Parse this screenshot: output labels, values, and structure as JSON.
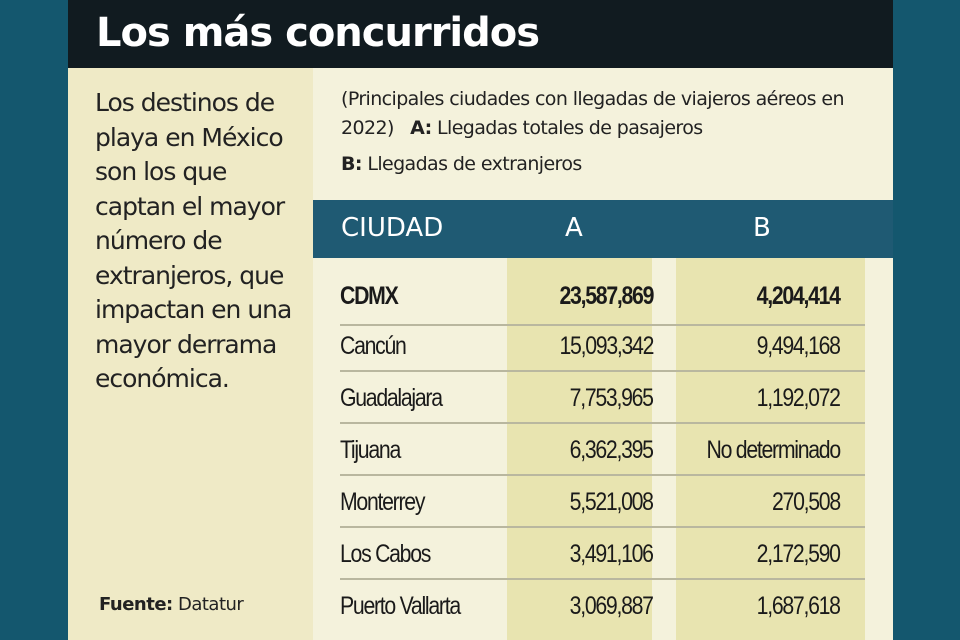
{
  "title": "Los más concurridos",
  "description": "Los destinos de playa en México son los que captan el mayor número de extranjeros, que impactan en una mayor derrama económica.",
  "source": {
    "label": "Fuente:",
    "value": "Datatur"
  },
  "subtitle": "(Principales ciudades con llegadas de viajeros aéreos en 2022)",
  "legend": {
    "a_key": "A:",
    "a_text": "Llegadas totales de pasajeros",
    "b_key": "B:",
    "b_text": "Llegadas de extranjeros"
  },
  "table": {
    "headers": [
      "CIUDAD",
      "A",
      "B"
    ],
    "rows": [
      [
        "CDMX",
        "23,587,869",
        "4,204,414"
      ],
      [
        "Cancún",
        "15,093,342",
        "9,494,168"
      ],
      [
        "Guadalajara",
        "7,753,965",
        "1,192,072"
      ],
      [
        "Tijuana",
        "6,362,395",
        "No determinado"
      ],
      [
        "Monterrey",
        "5,521,008",
        "270,508"
      ],
      [
        "Los Cabos",
        "3,491,106",
        "2,172,590"
      ],
      [
        "Puerto Vallarta",
        "3,069,887",
        "1,687,618"
      ]
    ]
  },
  "colors": {
    "background": "#14576e",
    "header": "#111b20",
    "table_header": "#1f5a73",
    "highlight": "#e8e4b0"
  }
}
